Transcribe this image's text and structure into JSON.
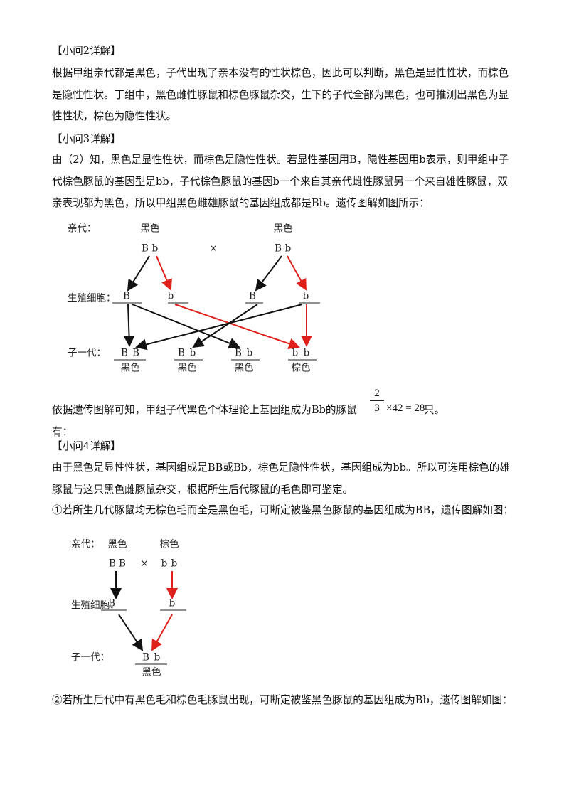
{
  "q2": {
    "heading": "【小问2详解】",
    "text": "根据甲组亲代都是黑色，子代出现了亲本没有的性状棕色，因此可以判断，黑色是显性性状，而棕色是隐性性状。丁组中，黑色雌性豚鼠和棕色豚鼠杂交，生下的子代全部为黑色，也可推测出黑色为显性性状，棕色为隐性性状。"
  },
  "q3": {
    "heading": "【小问3详解】",
    "text": "由（2）知，黑色是显性性状，而棕色是隐性性状。若显性基因用B，隐性基因用b表示，则甲组中子代棕色豚鼠的基因型是bb，子代棕色豚鼠的基因b一个来自其亲代雌性豚鼠另一个来自雄性豚鼠，双亲表现都为黑色，所以甲组黑色雌雄豚鼠的基因组成都是Bb。遗传图解如图所示：",
    "diagram": {
      "parent_label": "亲代：",
      "parents": [
        {
          "phenotype": "黑色",
          "alleles": [
            "B",
            "b"
          ]
        },
        {
          "phenotype": "黑色",
          "alleles": [
            "B",
            "b"
          ]
        }
      ],
      "cross": "×",
      "gamete_label": "生殖细胞：",
      "gametes": [
        "B",
        "b",
        "B",
        "b"
      ],
      "offspring_label": "子一代：",
      "offspring": [
        {
          "alleles": [
            "B",
            "B"
          ],
          "phenotype": "黑色"
        },
        {
          "alleles": [
            "B",
            "b"
          ],
          "phenotype": "黑色"
        },
        {
          "alleles": [
            "B",
            "b"
          ],
          "phenotype": "黑色"
        },
        {
          "alleles": [
            "b",
            "b"
          ],
          "phenotype": "棕色"
        }
      ]
    },
    "conclusion": {
      "text": "依据遗传图解可知，甲组子代黑色个体理论上基因组成为Bb的豚鼠有：",
      "numerator": "2",
      "denominator": "3",
      "expression": "×42 = 28",
      "unit": "只。"
    }
  },
  "q4": {
    "heading": "【小问4详解】",
    "text": "由于黑色是显性性状，基因组成是BB或Bb，棕色是隐性性状，基因组成为bb。所以可选用棕色的雄豚鼠与这只黑色雌豚鼠杂交，根据所生后代豚鼠的毛色即可鉴定。",
    "case1": {
      "text": "①若所生几代豚鼠均无棕色毛而全是黑色毛，可断定被鉴黑色豚鼠的基因组成为BB，遗传图解如图：",
      "diagram": {
        "parent_label": "亲代：",
        "parents": [
          {
            "phenotype": "黑色",
            "alleles": [
              "B",
              "B"
            ]
          },
          {
            "phenotype": "棕色",
            "alleles": [
              "b",
              "b"
            ]
          }
        ],
        "cross": "×",
        "gamete_label": "生殖细胞：",
        "gametes": [
          "B",
          "b"
        ],
        "offspring_label": "子一代：",
        "offspring": [
          {
            "alleles": [
              "B",
              "b"
            ],
            "phenotype": "黑色"
          }
        ]
      }
    },
    "case2": {
      "text": "②若所生后代中有黑色毛和棕色毛豚鼠出现，可断定被鉴黑色豚鼠的基因组成为Bb，遗传图解如图："
    }
  }
}
